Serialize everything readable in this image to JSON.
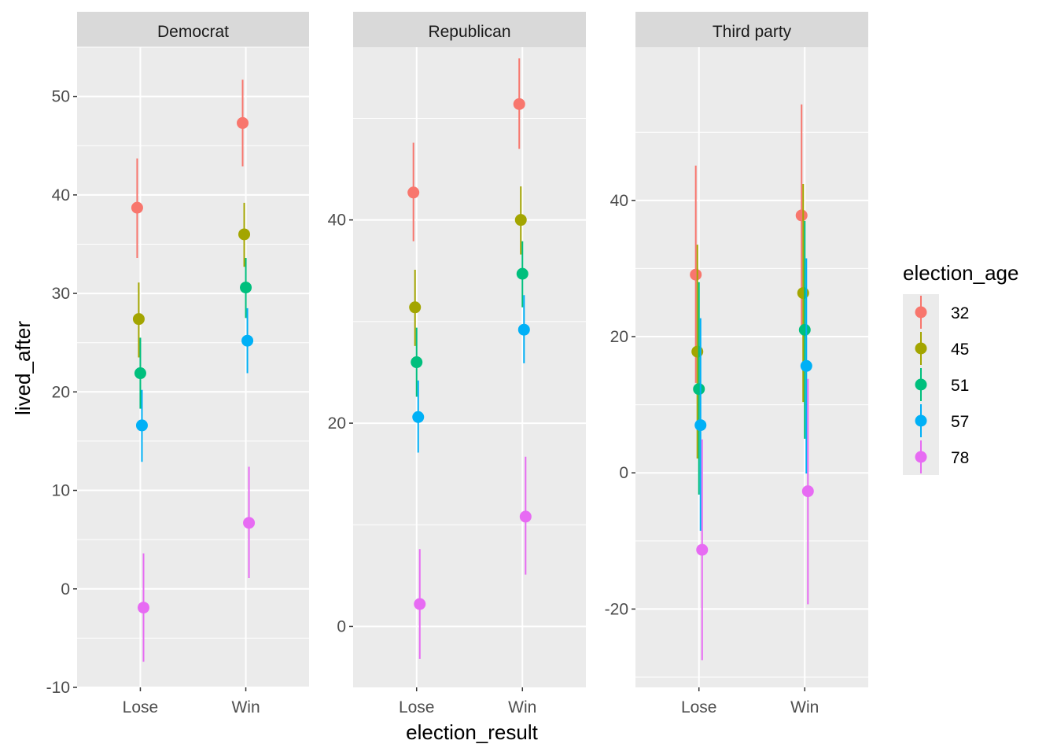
{
  "chart_data": {
    "type": "pointrange",
    "xlabel": "election_result",
    "ylabel": "lived_after",
    "categories": [
      "Lose",
      "Win"
    ],
    "legend": {
      "title": "election_age",
      "position": "right",
      "levels": [
        {
          "label": "32",
          "color": "#F8766D"
        },
        {
          "label": "45",
          "color": "#A3A500"
        },
        {
          "label": "51",
          "color": "#00BF7D"
        },
        {
          "label": "57",
          "color": "#00B0F6"
        },
        {
          "label": "78",
          "color": "#E76BF3"
        }
      ]
    },
    "grid": true,
    "panels": [
      {
        "title": "Democrat",
        "ylim": [
          -10,
          55
        ],
        "yticks": [
          -10,
          0,
          10,
          20,
          30,
          40,
          50
        ],
        "series": [
          {
            "name": "32",
            "points": [
              {
                "x": "Lose",
                "y": 38.7,
                "ymin": 33.6,
                "ymax": 43.7
              },
              {
                "x": "Win",
                "y": 47.3,
                "ymin": 42.9,
                "ymax": 51.7
              }
            ]
          },
          {
            "name": "45",
            "points": [
              {
                "x": "Lose",
                "y": 27.4,
                "ymin": 23.5,
                "ymax": 31.1
              },
              {
                "x": "Win",
                "y": 36.0,
                "ymin": 32.7,
                "ymax": 39.2
              }
            ]
          },
          {
            "name": "51",
            "points": [
              {
                "x": "Lose",
                "y": 21.9,
                "ymin": 18.3,
                "ymax": 25.5
              },
              {
                "x": "Win",
                "y": 30.6,
                "ymin": 27.5,
                "ymax": 33.6
              }
            ]
          },
          {
            "name": "57",
            "points": [
              {
                "x": "Lose",
                "y": 16.6,
                "ymin": 12.9,
                "ymax": 20.2
              },
              {
                "x": "Win",
                "y": 25.2,
                "ymin": 21.9,
                "ymax": 28.5
              }
            ]
          },
          {
            "name": "78",
            "points": [
              {
                "x": "Lose",
                "y": -1.9,
                "ymin": -7.4,
                "ymax": 3.6
              },
              {
                "x": "Win",
                "y": 6.7,
                "ymin": 1.1,
                "ymax": 12.4
              }
            ]
          }
        ]
      },
      {
        "title": "Republican",
        "ylim": [
          -6,
          57
        ],
        "yticks": [
          0,
          20,
          40
        ],
        "series": [
          {
            "name": "32",
            "points": [
              {
                "x": "Lose",
                "y": 42.7,
                "ymin": 37.9,
                "ymax": 47.6
              },
              {
                "x": "Win",
                "y": 51.4,
                "ymin": 47.0,
                "ymax": 55.9
              }
            ]
          },
          {
            "name": "45",
            "points": [
              {
                "x": "Lose",
                "y": 31.4,
                "ymin": 27.6,
                "ymax": 35.1
              },
              {
                "x": "Win",
                "y": 40.0,
                "ymin": 36.6,
                "ymax": 43.3
              }
            ]
          },
          {
            "name": "51",
            "points": [
              {
                "x": "Lose",
                "y": 26.0,
                "ymin": 22.6,
                "ymax": 29.4
              },
              {
                "x": "Win",
                "y": 34.7,
                "ymin": 31.4,
                "ymax": 37.9
              }
            ]
          },
          {
            "name": "57",
            "points": [
              {
                "x": "Lose",
                "y": 20.6,
                "ymin": 17.1,
                "ymax": 24.2
              },
              {
                "x": "Win",
                "y": 29.2,
                "ymin": 25.9,
                "ymax": 32.6
              }
            ]
          },
          {
            "name": "78",
            "points": [
              {
                "x": "Lose",
                "y": 2.2,
                "ymin": -3.2,
                "ymax": 7.6
              },
              {
                "x": "Win",
                "y": 10.8,
                "ymin": 5.1,
                "ymax": 16.7
              }
            ]
          }
        ]
      },
      {
        "title": "Third party",
        "ylim": [
          -31.5,
          62.5
        ],
        "yticks": [
          -20,
          0,
          20,
          40
        ],
        "series": [
          {
            "name": "32",
            "points": [
              {
                "x": "Lose",
                "y": 29.1,
                "ymin": 13.2,
                "ymax": 45.1
              },
              {
                "x": "Win",
                "y": 37.8,
                "ymin": 21.6,
                "ymax": 54.1
              }
            ]
          },
          {
            "name": "45",
            "points": [
              {
                "x": "Lose",
                "y": 17.8,
                "ymin": 2.1,
                "ymax": 33.5
              },
              {
                "x": "Win",
                "y": 26.4,
                "ymin": 10.4,
                "ymax": 42.4
              }
            ]
          },
          {
            "name": "51",
            "points": [
              {
                "x": "Lose",
                "y": 12.3,
                "ymin": -3.2,
                "ymax": 28.0
              },
              {
                "x": "Win",
                "y": 21.0,
                "ymin": 5.0,
                "ymax": 37.0
              }
            ]
          },
          {
            "name": "57",
            "points": [
              {
                "x": "Lose",
                "y": 7.0,
                "ymin": -8.5,
                "ymax": 22.7
              },
              {
                "x": "Win",
                "y": 15.7,
                "ymin": -0.1,
                "ymax": 31.5
              }
            ]
          },
          {
            "name": "78",
            "points": [
              {
                "x": "Lose",
                "y": -11.3,
                "ymin": -27.5,
                "ymax": 4.9
              },
              {
                "x": "Win",
                "y": -2.7,
                "ymin": -19.3,
                "ymax": 13.8
              }
            ]
          }
        ]
      }
    ]
  }
}
